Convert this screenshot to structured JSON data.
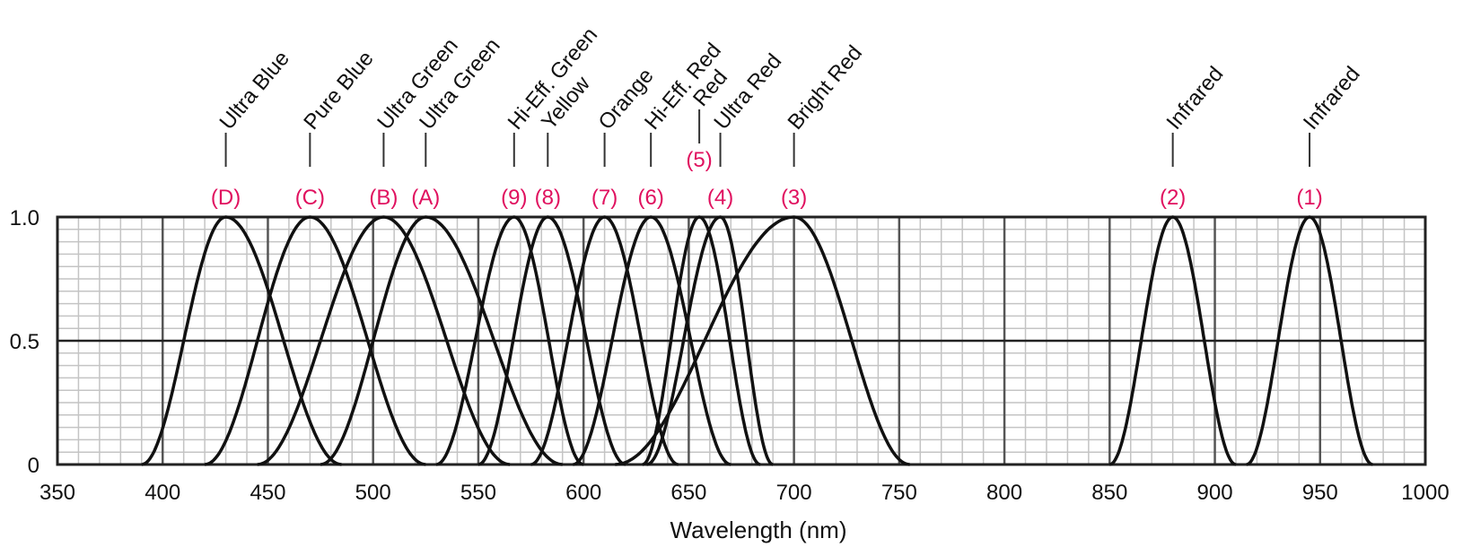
{
  "chart_data": {
    "type": "line",
    "title": "",
    "xlabel": "Wavelength (nm)",
    "ylabel": "",
    "xlim": [
      350,
      1000
    ],
    "ylim": [
      0,
      1.0
    ],
    "x_ticks": [
      350,
      400,
      450,
      500,
      550,
      600,
      650,
      700,
      750,
      800,
      850,
      900,
      950,
      1000
    ],
    "x_tick_labels": [
      "350",
      "400",
      "450",
      "500",
      "550",
      "600",
      "650",
      "700",
      "750",
      "800",
      "850",
      "900",
      "950",
      "1000"
    ],
    "y_ticks": [
      0,
      0.5,
      1.0
    ],
    "y_tick_labels": [
      "0",
      "0.5",
      "1.0"
    ],
    "grid": true,
    "series": [
      {
        "name": "Ultra Blue",
        "code": "(D)",
        "peak": 430,
        "left": 390,
        "right": 485
      },
      {
        "name": "Pure Blue",
        "code": "(C)",
        "peak": 470,
        "left": 420,
        "right": 525
      },
      {
        "name": "Ultra Green",
        "code": "(B)",
        "peak": 505,
        "left": 445,
        "right": 565
      },
      {
        "name": "Ultra Green",
        "code": "(A)",
        "peak": 525,
        "left": 475,
        "right": 590
      },
      {
        "name": "Hi-Eff. Green",
        "code": "(9)",
        "peak": 567,
        "left": 530,
        "right": 600
      },
      {
        "name": "Yellow",
        "code": "(8)",
        "peak": 583,
        "left": 550,
        "right": 620
      },
      {
        "name": "Orange",
        "code": "(7)",
        "peak": 610,
        "left": 575,
        "right": 645
      },
      {
        "name": "Hi-Eff. Red",
        "code": "(6)",
        "peak": 632,
        "left": 595,
        "right": 670
      },
      {
        "name": "Red",
        "code": "(5)",
        "peak": 655,
        "left": 628,
        "right": 684
      },
      {
        "name": "Ultra Red",
        "code": "(4)",
        "peak": 665,
        "left": 630,
        "right": 690
      },
      {
        "name": "Bright Red",
        "code": "(3)",
        "peak": 700,
        "left": 615,
        "right": 755
      },
      {
        "name": "Infrared",
        "code": "(2)",
        "peak": 880,
        "left": 850,
        "right": 910
      },
      {
        "name": "Infrared",
        "code": "(1)",
        "peak": 945,
        "left": 915,
        "right": 975
      }
    ]
  }
}
